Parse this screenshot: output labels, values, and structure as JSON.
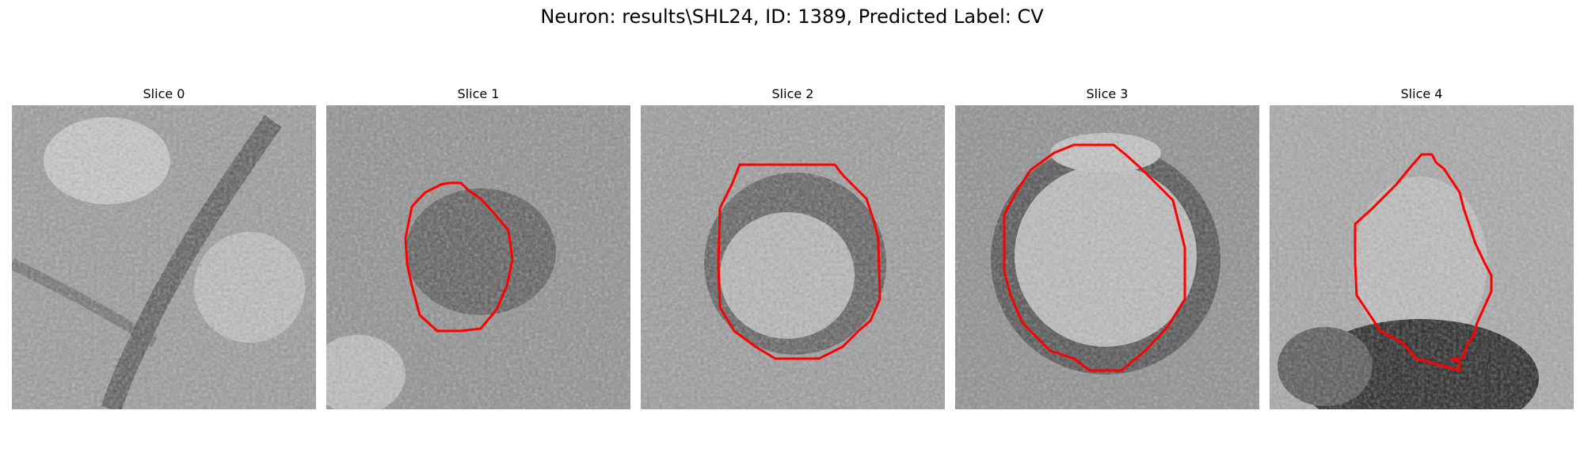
{
  "figure": {
    "title": "Neuron: results\\SHL24, ID: 1389, Predicted Label: CV"
  },
  "slices": [
    {
      "title": "Slice 0",
      "has_contour": false,
      "overlay_color": "#ff0000"
    },
    {
      "title": "Slice 1",
      "has_contour": true,
      "overlay_color": "#ff0000"
    },
    {
      "title": "Slice 2",
      "has_contour": true,
      "overlay_color": "#ff0000"
    },
    {
      "title": "Slice 3",
      "has_contour": true,
      "overlay_color": "#ff0000"
    },
    {
      "title": "Slice 4",
      "has_contour": true,
      "overlay_color": "#ff0000"
    }
  ]
}
